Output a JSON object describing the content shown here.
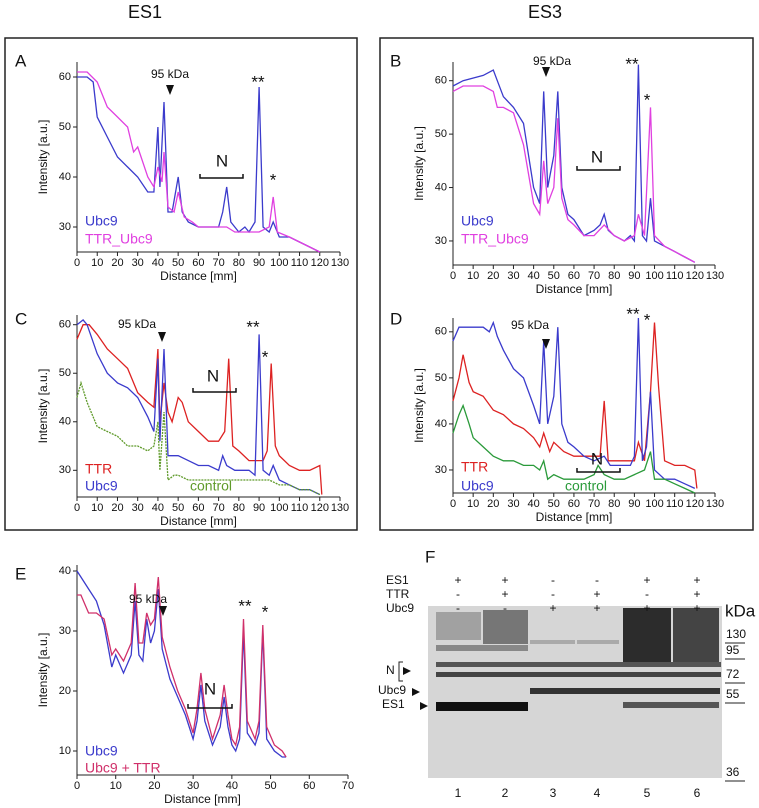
{
  "headers": [
    "ES1",
    "ES3"
  ],
  "chart_data": [
    {
      "type": "line",
      "panel_label": "A",
      "y_label": "Intensity [a.u.]",
      "x_label": "Distance [mm]",
      "xlim": [
        0,
        130
      ],
      "xticks": [
        0,
        10,
        20,
        30,
        40,
        50,
        60,
        70,
        80,
        90,
        100,
        110,
        120,
        130
      ],
      "ylim": [
        25,
        63
      ],
      "yticks": [
        30,
        40,
        50,
        60
      ],
      "annotations": [
        "95 kDa",
        "N",
        "**",
        "*"
      ],
      "series": [
        {
          "name": "Ubc9",
          "color": "#3b3bcc",
          "x": [
            0,
            5,
            8,
            10,
            15,
            20,
            25,
            30,
            35,
            38,
            40,
            41,
            43,
            45,
            47,
            50,
            52,
            55,
            60,
            65,
            70,
            72,
            74,
            76,
            80,
            83,
            85,
            88,
            90,
            92,
            95,
            97,
            100,
            105,
            110,
            115,
            120
          ],
          "values": [
            60,
            60,
            59,
            52,
            48,
            44,
            42,
            40,
            37,
            37,
            50,
            38,
            55,
            33,
            33,
            40,
            33,
            31,
            30,
            30,
            30,
            33,
            38,
            31,
            29,
            30,
            29,
            31,
            58,
            30,
            29,
            31,
            28,
            28,
            27,
            26,
            25
          ]
        },
        {
          "name": "TTR_Ubc9",
          "color": "#e040e0",
          "x": [
            0,
            5,
            10,
            15,
            20,
            25,
            28,
            30,
            35,
            38,
            40,
            42,
            43,
            45,
            48,
            50,
            53,
            57,
            60,
            70,
            74,
            78,
            84,
            90,
            95,
            97,
            99,
            105,
            110,
            115,
            120
          ],
          "values": [
            61,
            61,
            59,
            54,
            52,
            50,
            45,
            46,
            40,
            38,
            42,
            39,
            45,
            34,
            33,
            37,
            32,
            31,
            30,
            30,
            30,
            29,
            29,
            29,
            30,
            36,
            29,
            28,
            27,
            26,
            25
          ]
        }
      ]
    },
    {
      "type": "line",
      "panel_label": "B",
      "y_label": "Intensity [a.u.]",
      "x_label": "Distance [mm]",
      "xlim": [
        0,
        130
      ],
      "xticks": [
        0,
        10,
        20,
        30,
        40,
        50,
        60,
        70,
        80,
        90,
        100,
        110,
        120,
        130
      ],
      "ylim": [
        25.5,
        63.5
      ],
      "yticks": [
        30,
        40,
        50,
        60
      ],
      "annotations": [
        "95 kDa",
        "N",
        "**",
        "*"
      ],
      "series": [
        {
          "name": "Ubc9",
          "color": "#3b3bcc",
          "x": [
            0,
            5,
            15,
            20,
            22,
            25,
            30,
            35,
            40,
            43,
            45,
            47,
            50,
            52,
            54,
            57,
            60,
            65,
            70,
            73,
            75,
            77,
            80,
            85,
            88,
            90,
            92,
            94,
            96,
            98,
            100,
            105,
            110,
            115,
            120
          ],
          "values": [
            59,
            60,
            61,
            62,
            60,
            57,
            55,
            52,
            40,
            37,
            58,
            40,
            46,
            58,
            40,
            35,
            34,
            31,
            32,
            33,
            35,
            32,
            31,
            30,
            31,
            30,
            63,
            31,
            30,
            38,
            30,
            29,
            28,
            27,
            26
          ]
        },
        {
          "name": "TTR_Ubc9",
          "color": "#e040e0",
          "x": [
            0,
            5,
            15,
            20,
            22,
            25,
            30,
            35,
            40,
            43,
            45,
            47,
            50,
            52,
            54,
            57,
            60,
            65,
            70,
            75,
            80,
            85,
            90,
            92,
            95,
            98,
            100,
            105,
            110,
            115,
            120
          ],
          "values": [
            58,
            59,
            59,
            58,
            55,
            55,
            54,
            48,
            37,
            35,
            45,
            37,
            40,
            53,
            38,
            34,
            33,
            31,
            31,
            33,
            31,
            30,
            31,
            35,
            31,
            55,
            31,
            29,
            28,
            27,
            26
          ]
        }
      ]
    },
    {
      "type": "line",
      "panel_label": "C",
      "y_label": "Intensity [a.u.]",
      "x_label": "Distance [mm]",
      "xlim": [
        0,
        130
      ],
      "xticks": [
        0,
        10,
        20,
        30,
        40,
        50,
        60,
        70,
        80,
        90,
        100,
        110,
        120,
        130
      ],
      "ylim": [
        24.5,
        62
      ],
      "yticks": [
        30,
        40,
        50,
        60
      ],
      "annotations": [
        "95 kDa",
        "N",
        "**",
        "*"
      ],
      "series": [
        {
          "name": "TTR",
          "color": "#dd2222",
          "x": [
            0,
            3,
            6,
            10,
            15,
            20,
            25,
            30,
            35,
            38,
            40,
            41,
            43,
            45,
            47,
            50,
            52,
            55,
            60,
            65,
            70,
            73,
            75,
            77,
            80,
            85,
            88,
            92,
            94,
            96,
            98,
            100,
            105,
            110,
            115,
            120,
            121
          ],
          "values": [
            57,
            60,
            60,
            58,
            55,
            53,
            51,
            46,
            44,
            43,
            55,
            40,
            48,
            42,
            40,
            45,
            44,
            40,
            38,
            36,
            36,
            38,
            53,
            35,
            34,
            32,
            32,
            32,
            34,
            52,
            35,
            33,
            31,
            30,
            30,
            31,
            25
          ]
        },
        {
          "name": "Ubc9",
          "color": "#3b3bcc",
          "x": [
            0,
            3,
            5,
            10,
            15,
            20,
            25,
            30,
            35,
            38,
            40,
            41,
            43,
            45,
            48,
            50,
            55,
            60,
            65,
            70,
            72,
            74,
            78,
            85,
            88,
            90,
            92,
            95,
            97,
            100,
            105,
            110,
            115,
            120
          ],
          "values": [
            60,
            61,
            60,
            54,
            50,
            48,
            47,
            45,
            41,
            38,
            53,
            36,
            55,
            33,
            33,
            33,
            32,
            31,
            31,
            30,
            33,
            31,
            30,
            30,
            29,
            58,
            30,
            29,
            31,
            28,
            27,
            26,
            26,
            25
          ]
        },
        {
          "name": "control",
          "color": "#5f9a2a",
          "x": [
            0,
            2,
            5,
            10,
            15,
            20,
            25,
            30,
            35,
            38,
            40,
            41,
            43,
            45,
            48,
            50,
            55,
            60,
            65,
            70,
            75,
            80,
            85,
            90,
            95,
            100,
            105,
            110,
            115,
            120
          ],
          "values": [
            45,
            48,
            44,
            39,
            38,
            37,
            35,
            35,
            34,
            35,
            40,
            30,
            42,
            28,
            29,
            29,
            28,
            28,
            28,
            28,
            28,
            28,
            28,
            28,
            28,
            27,
            27,
            26,
            26,
            25
          ]
        }
      ]
    },
    {
      "type": "line",
      "panel_label": "D",
      "y_label": "Intensity [a.u.]",
      "x_label": "Distance [mm]",
      "xlim": [
        0,
        130
      ],
      "xticks": [
        0,
        10,
        20,
        30,
        40,
        50,
        60,
        70,
        80,
        90,
        100,
        110,
        120,
        130
      ],
      "ylim": [
        25,
        63
      ],
      "yticks": [
        30,
        40,
        50,
        60
      ],
      "annotations": [
        "95 kDa",
        "N",
        "**",
        "*"
      ],
      "series": [
        {
          "name": "TTR",
          "color": "#dd2222",
          "x": [
            0,
            3,
            5,
            8,
            10,
            15,
            20,
            25,
            30,
            35,
            40,
            43,
            45,
            48,
            50,
            55,
            60,
            65,
            70,
            73,
            75,
            77,
            80,
            85,
            90,
            92,
            95,
            98,
            100,
            102,
            105,
            110,
            115,
            120,
            121
          ],
          "values": [
            45,
            50,
            55,
            49,
            47,
            46,
            43,
            42,
            40,
            39,
            37,
            35,
            38,
            34,
            36,
            34,
            33,
            33,
            33,
            33,
            45,
            32,
            32,
            32,
            32,
            36,
            32,
            47,
            62,
            48,
            32,
            31,
            31,
            30,
            26
          ]
        },
        {
          "name": "Ubc9",
          "color": "#3b3bcc",
          "x": [
            0,
            3,
            10,
            15,
            18,
            20,
            22,
            25,
            30,
            35,
            40,
            43,
            45,
            47,
            50,
            52,
            54,
            57,
            60,
            65,
            70,
            75,
            78,
            80,
            85,
            88,
            90,
            92,
            94,
            96,
            98,
            100,
            105,
            110,
            115,
            120
          ],
          "values": [
            58,
            61,
            61,
            61,
            60,
            62,
            59,
            56,
            52,
            50,
            44,
            40,
            58,
            40,
            46,
            61,
            40,
            36,
            35,
            33,
            32,
            33,
            31,
            31,
            31,
            31,
            33,
            63,
            32,
            35,
            47,
            30,
            28,
            28,
            27,
            26
          ]
        },
        {
          "name": "control",
          "color": "#2a9a3a",
          "x": [
            0,
            3,
            5,
            8,
            10,
            15,
            20,
            25,
            30,
            35,
            40,
            43,
            45,
            47,
            50,
            55,
            60,
            65,
            70,
            72,
            75,
            80,
            85,
            90,
            95,
            98,
            100,
            105,
            110,
            115,
            120
          ],
          "values": [
            38,
            42,
            44,
            40,
            37,
            35,
            33,
            32,
            32,
            31,
            31,
            30,
            32,
            28,
            29,
            28,
            28,
            28,
            29,
            31,
            29,
            28,
            28,
            29,
            30,
            34,
            28,
            28,
            27,
            26,
            25
          ]
        }
      ]
    },
    {
      "type": "line",
      "panel_label": "E",
      "y_label": "Intensity [a.u.]",
      "x_label": "Distance [mm]",
      "xlim": [
        0,
        70
      ],
      "xticks": [
        0,
        10,
        20,
        30,
        40,
        50,
        60,
        70
      ],
      "ylim": [
        6,
        41
      ],
      "yticks": [
        10,
        20,
        30,
        40
      ],
      "annotations": [
        "95 kDa",
        "N",
        "**",
        "*"
      ],
      "series": [
        {
          "name": "Ubc9",
          "color": "#3b3bcc",
          "x": [
            0,
            1,
            3,
            5,
            7,
            9,
            10,
            12,
            14,
            15,
            16,
            17,
            18,
            19,
            20,
            21,
            22,
            24,
            26,
            28,
            30,
            31,
            32,
            33,
            35,
            37,
            38,
            39,
            40,
            41,
            42,
            43,
            44,
            46,
            47,
            48,
            49,
            51,
            53,
            54
          ],
          "values": [
            40,
            39,
            37,
            35,
            31,
            24,
            26,
            23,
            26,
            35,
            26,
            25,
            32,
            28,
            30,
            37,
            27,
            22,
            19,
            16,
            12,
            15,
            21,
            15,
            11,
            14,
            19,
            14,
            11,
            10,
            12,
            30,
            13,
            11,
            13,
            30,
            12,
            10,
            9,
            9
          ]
        },
        {
          "name": "Ubc9 + TTR",
          "color": "#d0306a",
          "x": [
            0,
            1,
            3,
            5,
            7,
            9,
            10,
            12,
            14,
            15,
            16,
            17,
            18,
            19,
            20,
            21,
            22,
            24,
            26,
            28,
            30,
            31,
            32,
            33,
            35,
            37,
            38,
            39,
            40,
            41,
            42,
            43,
            44,
            46,
            47,
            48,
            49,
            51,
            53,
            54
          ],
          "values": [
            36,
            36,
            33,
            33,
            32,
            26,
            27,
            25,
            28,
            38,
            28,
            28,
            33,
            31,
            32,
            39,
            29,
            24,
            20,
            17,
            13,
            17,
            23,
            17,
            12,
            16,
            21,
            16,
            12,
            11,
            14,
            32,
            15,
            12,
            15,
            31,
            14,
            11,
            10,
            9
          ]
        }
      ]
    }
  ],
  "blot": {
    "panel_label": "F",
    "rows": [
      {
        "label": "ES1",
        "signs": [
          "+",
          "+",
          "-",
          "-",
          "+",
          "+"
        ]
      },
      {
        "label": "TTR",
        "signs": [
          "-",
          "+",
          "-",
          "+",
          "-",
          "+"
        ]
      },
      {
        "label": "Ubc9",
        "signs": [
          "-",
          "-",
          "+",
          "+",
          "+",
          "+"
        ]
      }
    ],
    "unit": "kDa",
    "markers": [
      "130",
      "95",
      "72",
      "55",
      "36"
    ],
    "band_labels": [
      "N",
      "Ubc9",
      "ES1"
    ],
    "lanes": [
      "1",
      "2",
      "3",
      "4",
      "5",
      "6"
    ]
  }
}
